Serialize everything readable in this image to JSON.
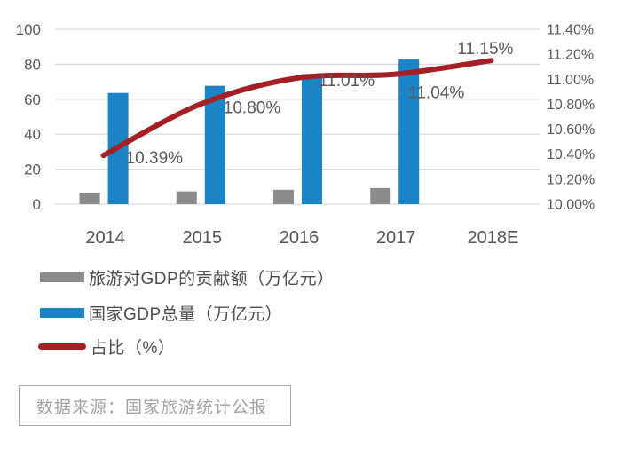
{
  "chart_data": {
    "type": "combo",
    "categories": [
      "2014",
      "2015",
      "2016",
      "2017",
      "2018E"
    ],
    "series": [
      {
        "name": "旅游对GDP的贡献额（万亿元）",
        "type": "bar",
        "color": "#8b8b8b",
        "axis": "left",
        "values": [
          6.6,
          7.3,
          8.2,
          9.2,
          null
        ]
      },
      {
        "name": "国家GDP总量（万亿元）",
        "type": "bar",
        "color": "#1b84c7",
        "axis": "left",
        "values": [
          63.6,
          67.7,
          74.4,
          82.7,
          null
        ]
      },
      {
        "name": "占比（%）",
        "type": "line",
        "color": "#a52025",
        "axis": "right",
        "values": [
          10.39,
          10.8,
          11.01,
          11.04,
          11.15
        ],
        "point_labels": [
          "10.39%",
          "10.80%",
          "11.01%",
          "11.04%",
          "11.15%"
        ],
        "label_offsets": [
          [
            25,
            9
          ],
          [
            26,
            10
          ],
          [
            24,
            9
          ],
          [
            16,
            27
          ],
          [
            -38,
            -7
          ]
        ]
      }
    ],
    "left_axis": {
      "min": 0,
      "max": 100,
      "tick_step": 20,
      "tick_labels": [
        "0",
        "20",
        "40",
        "60",
        "80",
        "100"
      ]
    },
    "right_axis": {
      "min": 10.0,
      "max": 11.4,
      "tick_step": 0.2,
      "tick_labels": [
        "10.00%",
        "10.20%",
        "10.40%",
        "10.60%",
        "10.80%",
        "11.00%",
        "11.20%",
        "11.40%"
      ]
    },
    "grid": true,
    "legend_position": "bottom-left",
    "title": "",
    "xlabel": "",
    "ylabel": ""
  },
  "style": {
    "grid_color": "#d9d9d9",
    "axis_text_color": "#595959",
    "x_label_color": "#545454",
    "point_label_color": "#595959"
  },
  "source": {
    "text": "数据来源：国家旅游统计公报"
  }
}
